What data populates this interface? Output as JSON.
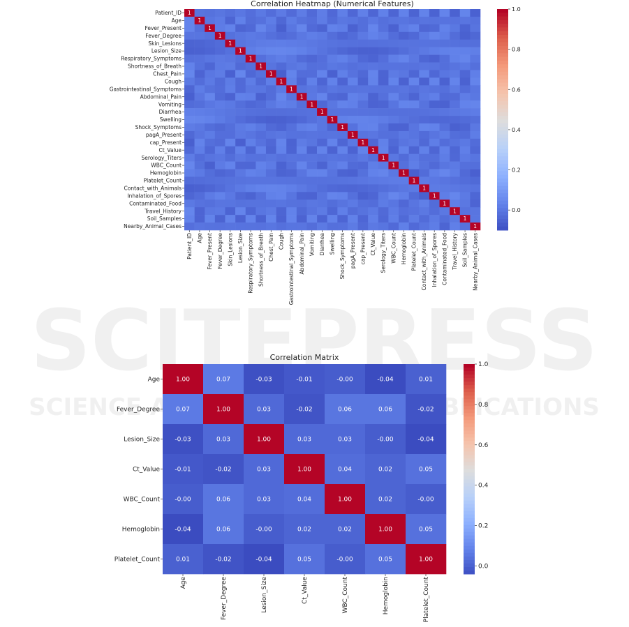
{
  "watermark": {
    "main": "SCITEPRESS",
    "sub": "SCIENCE AND TECHNOLOGY PUBLICATIONS"
  },
  "chart_data": [
    {
      "type": "heatmap",
      "title": "Correlation Heatmap (Numerical Features)",
      "labels": [
        "Patient_ID",
        "Age",
        "Fever_Present",
        "Fever_Degree",
        "Skin_Lesions",
        "Lesion_Size",
        "Respiratory_Symptoms",
        "Shortness_of_Breath",
        "Chest_Pain",
        "Cough",
        "Gastrointestinal_Symptoms",
        "Abdominal_Pain",
        "Vomiting",
        "Diarrhea",
        "Swelling",
        "Shock_Symptoms",
        "pagA_Present",
        "cap_Present",
        "Ct_Value",
        "Serology_Titers",
        "WBC_Count",
        "Hemoglobin",
        "Platelet_Count",
        "Contact_with_Animals",
        "Inhalation_of_Spores",
        "Contaminated_Food",
        "Travel_History",
        "Soil_Samples",
        "Nearby_Animal_Cases"
      ],
      "diagonal_value": 1,
      "off_diagonal_approx": 0.0,
      "colorbar": {
        "range": [
          -0.1,
          1.0
        ],
        "ticks": [
          0.0,
          0.2,
          0.4,
          0.6,
          0.8,
          1.0
        ],
        "tick_labels": [
          "0.0",
          "0.2",
          "0.4",
          "0.6",
          "0.8",
          "1.0"
        ]
      },
      "colormap": "coolwarm"
    },
    {
      "type": "heatmap",
      "title": "Correlation Matrix",
      "labels": [
        "Age",
        "Fever_Degree",
        "Lesion_Size",
        "Ct_Value",
        "WBC_Count",
        "Hemoglobin",
        "Platelet_Count"
      ],
      "values": [
        [
          1.0,
          0.07,
          -0.03,
          -0.01,
          -0.0,
          -0.04,
          0.01
        ],
        [
          0.07,
          1.0,
          0.03,
          -0.02,
          0.06,
          0.06,
          -0.02
        ],
        [
          -0.03,
          0.03,
          1.0,
          0.03,
          0.03,
          -0.0,
          -0.04
        ],
        [
          -0.01,
          -0.02,
          0.03,
          1.0,
          0.04,
          0.02,
          0.05
        ],
        [
          -0.0,
          0.06,
          0.03,
          0.04,
          1.0,
          0.02,
          -0.0
        ],
        [
          -0.04,
          0.06,
          -0.0,
          0.02,
          0.02,
          1.0,
          0.05
        ],
        [
          0.01,
          -0.02,
          -0.04,
          0.05,
          -0.0,
          0.05,
          1.0
        ]
      ],
      "annotations": [
        [
          "1.00",
          "0.07",
          "-0.03",
          "-0.01",
          "-0.00",
          "-0.04",
          "0.01"
        ],
        [
          "0.07",
          "1.00",
          "0.03",
          "-0.02",
          "0.06",
          "0.06",
          "-0.02"
        ],
        [
          "-0.03",
          "0.03",
          "1.00",
          "0.03",
          "0.03",
          "-0.00",
          "-0.04"
        ],
        [
          "-0.01",
          "-0.02",
          "0.03",
          "1.00",
          "0.04",
          "0.02",
          "0.05"
        ],
        [
          "-0.00",
          "0.06",
          "0.03",
          "0.04",
          "1.00",
          "0.02",
          "-0.00"
        ],
        [
          "-0.04",
          "0.06",
          "-0.00",
          "0.02",
          "0.02",
          "1.00",
          "0.05"
        ],
        [
          "0.01",
          "-0.02",
          "-0.04",
          "0.05",
          "-0.00",
          "0.05",
          "1.00"
        ]
      ],
      "colorbar": {
        "range": [
          -0.04,
          1.0
        ],
        "ticks": [
          0.0,
          0.2,
          0.4,
          0.6,
          0.8,
          1.0
        ],
        "tick_labels": [
          "0.0",
          "0.2",
          "0.4",
          "0.6",
          "0.8",
          "1.0"
        ]
      },
      "colormap": "coolwarm"
    }
  ]
}
